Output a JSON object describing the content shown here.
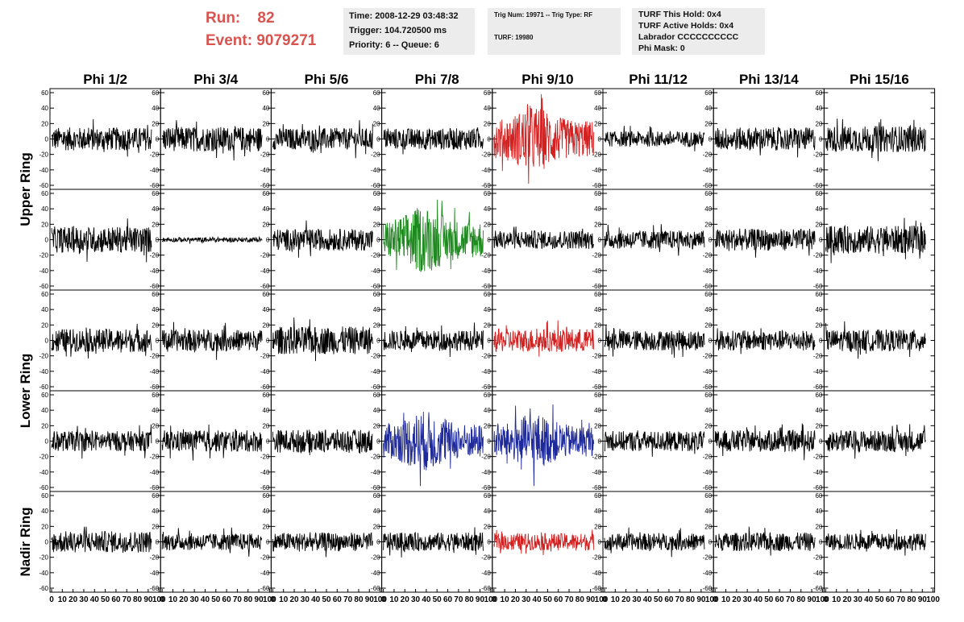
{
  "header": {
    "run_label": "Run:",
    "run_value": "82",
    "event_label": "Event:",
    "event_value": "9079271",
    "time": "Time: 2008-12-29 03:48:32",
    "trigger": "Trigger: 104.720500 ms",
    "priority": "Priority: 6 -- Queue: 6",
    "trig_num": "Trig Num: 19971 -- Trig Type: RF",
    "turf": "TURF: 19980",
    "turf_hold": "TURF This Hold: 0x4",
    "turf_active": "TURF Active Holds: 0x4",
    "labrador": "Labrador CCCCCCCCCC",
    "phi_mask": "Phi Mask: 0"
  },
  "colors": {
    "header_red": "#d9534f",
    "trace_default": "#000000",
    "trace_red": "#d32020",
    "trace_green": "#1f8a1f",
    "trace_blue": "#1f2a9a"
  },
  "chart_data": {
    "type": "line",
    "columns": [
      "Phi 1/2",
      "Phi 3/4",
      "Phi 5/6",
      "Phi 7/8",
      "Phi 9/10",
      "Phi 11/12",
      "Phi 13/14",
      "Phi 15/16"
    ],
    "ring_labels": [
      "Upper Ring",
      "Lower Ring",
      "Nadir Ring"
    ],
    "ylim": [
      -60,
      60
    ],
    "xlim": [
      0,
      100
    ],
    "y_ticks": [
      "60",
      "40",
      "20",
      "0",
      "-20",
      "-40",
      "-60"
    ],
    "x_ticks": [
      "0",
      "10",
      "20",
      "30",
      "40",
      "50",
      "60",
      "70",
      "80",
      "90",
      "100"
    ],
    "panel_amplitudes": [
      [
        15,
        16,
        14,
        14,
        24,
        10,
        15,
        17
      ],
      [
        17,
        3,
        14,
        24,
        12,
        12,
        14,
        18
      ],
      [
        15,
        14,
        18,
        13,
        15,
        13,
        13,
        14
      ],
      [
        13,
        14,
        15,
        22,
        20,
        13,
        14,
        14
      ],
      [
        14,
        11,
        12,
        12,
        11,
        11,
        12,
        11
      ]
    ],
    "panel_colors": [
      [
        "black",
        "black",
        "black",
        "black",
        "red",
        "black",
        "black",
        "black"
      ],
      [
        "black",
        "black",
        "black",
        "green",
        "black",
        "black",
        "black",
        "black"
      ],
      [
        "black",
        "black",
        "black",
        "black",
        "red",
        "black",
        "black",
        "black"
      ],
      [
        "black",
        "black",
        "black",
        "blue",
        "blue",
        "black",
        "black",
        "black"
      ],
      [
        "black",
        "black",
        "black",
        "black",
        "red",
        "black",
        "black",
        "black"
      ]
    ]
  }
}
